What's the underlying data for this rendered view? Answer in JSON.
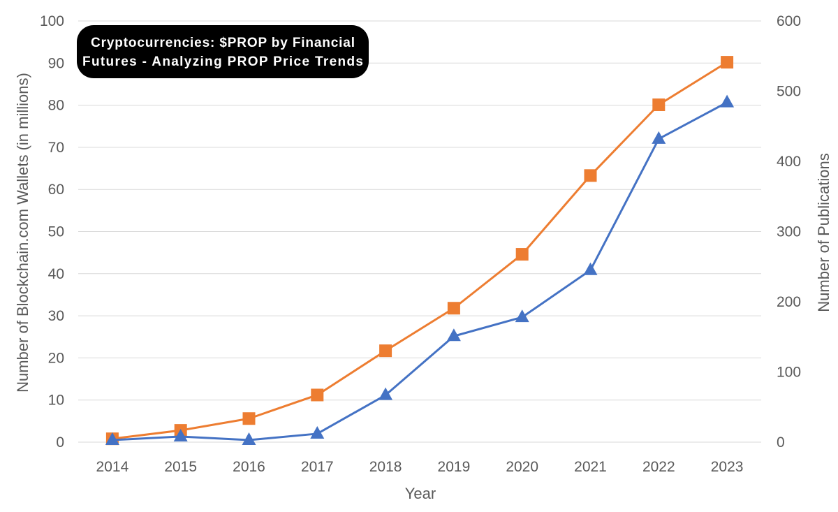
{
  "chart_data": {
    "type": "line",
    "title_lines": [
      "Cryptocurrencies: $PROP by Financial",
      "Futures - Analyzing PROP Price Trends"
    ],
    "xlabel": "Year",
    "ylabel_left": "Number of Blockchain.com Wallets (in millions)",
    "ylabel_right": "Number of Publications",
    "x": [
      "2014",
      "2015",
      "2016",
      "2017",
      "2018",
      "2019",
      "2020",
      "2021",
      "2022",
      "2023"
    ],
    "y_left_ticks": [
      "0",
      "10",
      "20",
      "30",
      "40",
      "50",
      "60",
      "70",
      "80",
      "90",
      "100"
    ],
    "y_right_ticks": [
      "0",
      "100",
      "200",
      "300",
      "400",
      "500",
      "600"
    ],
    "ylim_left": [
      0,
      100
    ],
    "ylim_right": [
      0,
      600
    ],
    "grid": true,
    "series": [
      {
        "axis": "left",
        "marker": "square",
        "color": "#ED7D31",
        "values": [
          0.8,
          2.8,
          5.6,
          11.2,
          21.7,
          31.8,
          44.6,
          63.3,
          80.1,
          90.2
        ]
      },
      {
        "axis": "right",
        "marker": "triangle",
        "color": "#4472C4",
        "values": [
          3,
          8,
          3,
          12,
          67,
          151,
          178,
          245,
          432,
          484
        ]
      }
    ]
  }
}
